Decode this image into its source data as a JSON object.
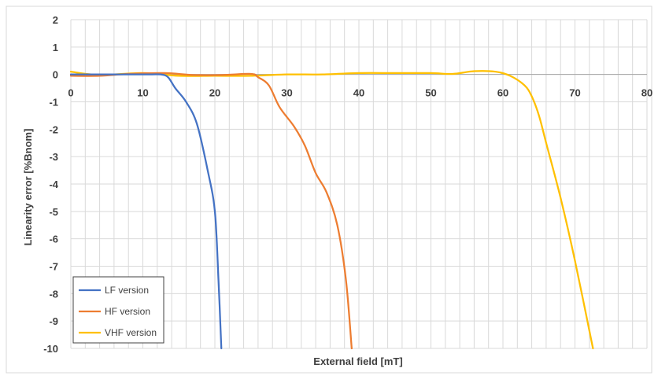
{
  "chart_data": {
    "type": "line",
    "title": "",
    "xlabel": "External field [mT]",
    "ylabel": "Linearity error [%Bnom]",
    "xlim": [
      0,
      80
    ],
    "ylim": [
      -10,
      2
    ],
    "x_ticks": [
      0,
      10,
      20,
      30,
      40,
      50,
      60,
      70,
      80
    ],
    "y_ticks": [
      2,
      1,
      0,
      -1,
      -2,
      -3,
      -4,
      -5,
      -6,
      -7,
      -8,
      -9,
      -10
    ],
    "x_tick_labels": [
      "0",
      "10",
      "20",
      "30",
      "40",
      "50",
      "60",
      "70",
      "80"
    ],
    "y_tick_labels": [
      "2",
      "1",
      "0",
      "-1",
      "-2",
      "-3",
      "-4",
      "-5",
      "-6",
      "-7",
      "-8",
      "-9",
      "-10"
    ],
    "grid": true,
    "legend_position": "bottom-left",
    "series": [
      {
        "name": "LF version",
        "color": "#4472C4",
        "x": [
          0,
          4,
          8,
          11,
          12.5,
          13.5,
          14.5,
          16,
          17.5,
          19,
          20,
          20.5,
          20.9
        ],
        "y": [
          0,
          0,
          0,
          0,
          0,
          -0.1,
          -0.5,
          -1.0,
          -1.8,
          -3.5,
          -5.0,
          -7.5,
          -10
        ]
      },
      {
        "name": "HF version",
        "color": "#ED7D31",
        "x": [
          0,
          4,
          8,
          13,
          17,
          21,
          25,
          26,
          27.5,
          29,
          31,
          32.5,
          34,
          35.5,
          37,
          38.2,
          39
        ],
        "y": [
          -0.05,
          -0.05,
          0.02,
          0.05,
          -0.02,
          -0.02,
          0.02,
          -0.1,
          -0.4,
          -1.2,
          -1.9,
          -2.6,
          -3.6,
          -4.3,
          -5.5,
          -7.5,
          -10
        ]
      },
      {
        "name": "VHF version",
        "color": "#FFC000",
        "x": [
          0,
          4,
          10,
          15,
          20,
          25,
          30,
          35,
          40,
          45,
          50,
          53,
          56,
          59,
          61,
          63,
          64,
          65,
          66,
          68,
          70,
          72.5
        ],
        "y": [
          0.1,
          -0.02,
          0.05,
          -0.05,
          -0.05,
          -0.05,
          0,
          0,
          0.05,
          0.05,
          0.05,
          0.02,
          0.12,
          0.1,
          -0.05,
          -0.4,
          -0.8,
          -1.5,
          -2.5,
          -4.5,
          -6.8,
          -10
        ]
      }
    ]
  }
}
